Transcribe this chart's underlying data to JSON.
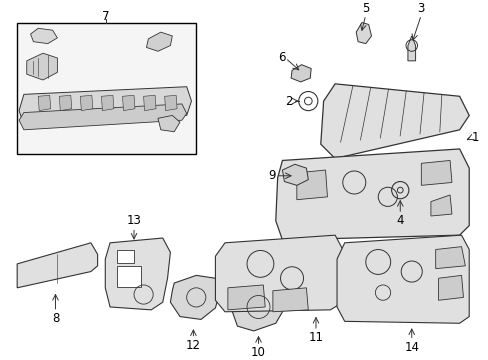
{
  "bg_color": "#ffffff",
  "line_color": "#333333",
  "fill_color": "#e8e8e8",
  "box_fill": "#eeeeee",
  "font_size": 8.5,
  "figsize": [
    4.89,
    3.6
  ],
  "dpi": 100
}
